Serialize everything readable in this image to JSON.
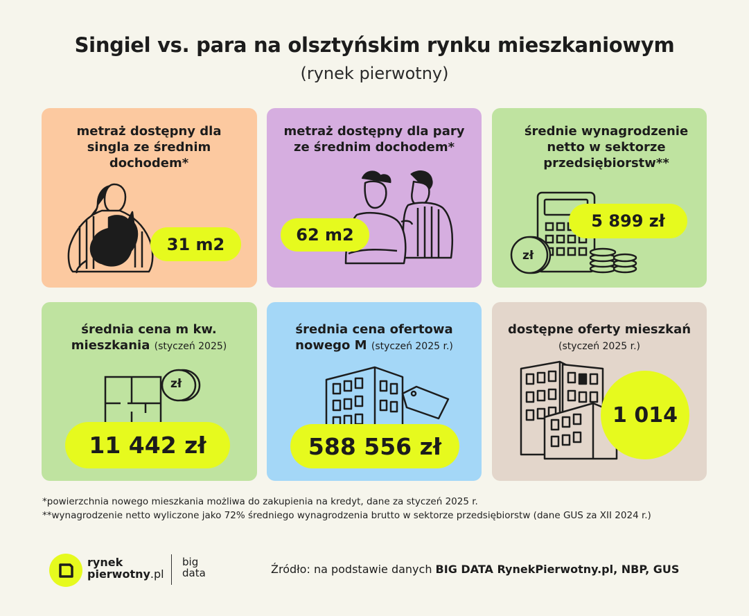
{
  "header": {
    "title": "Singiel vs. para na olsztyńskim rynku mieszkaniowym",
    "subtitle": "(rynek pierwotny)"
  },
  "cards": [
    {
      "label": "metraż dostępny dla singla ze średnim dochodem*",
      "value": "31 m2",
      "color": "#fcc9a0"
    },
    {
      "label": "metraż dostępny dla pary ze średnim dochodem*",
      "value": "62 m2",
      "color": "#d6aee0"
    },
    {
      "label": "średnie wynagrodzenie netto w sektorze przedsiębiorstw**",
      "value": "5 899 zł",
      "color": "#bfe3a0",
      "coin": "zł"
    },
    {
      "label": "średnia cena m kw. mieszkania",
      "label_note": "(styczeń 2025)",
      "value": "11 442 zł",
      "color": "#bfe3a0",
      "coin": "zł"
    },
    {
      "label": "średnia cena ofertowa nowego M",
      "label_note": "(styczeń 2025 r.)",
      "value": "588 556 zł",
      "color": "#a4d7f7"
    },
    {
      "label": "dostępne oferty mieszkań",
      "label_note": "(styczeń 2025 r.)",
      "value": "1 014",
      "color": "#e3d6cb"
    }
  ],
  "footnotes": [
    "*powierzchnia nowego mieszkania możliwa do zakupienia na kredyt, dane za styczeń 2025 r.",
    "**wynagrodzenie netto wyliczone jako 72% średniego wynagrodzenia brutto w sektorze przedsiębiorstw (dane GUS za XII 2024 r.)"
  ],
  "logo": {
    "line1": "rynek",
    "line2": "pierwotny",
    "line2_suffix": ".pl",
    "big1": "big",
    "big2": "data"
  },
  "source": {
    "prefix": "Źródło: na podstawie danych ",
    "bold": "BIG DATA RynekPierwotny.pl, NBP, GUS"
  },
  "colors": {
    "accent": "#e6fa1e",
    "background": "#f6f5ec"
  }
}
